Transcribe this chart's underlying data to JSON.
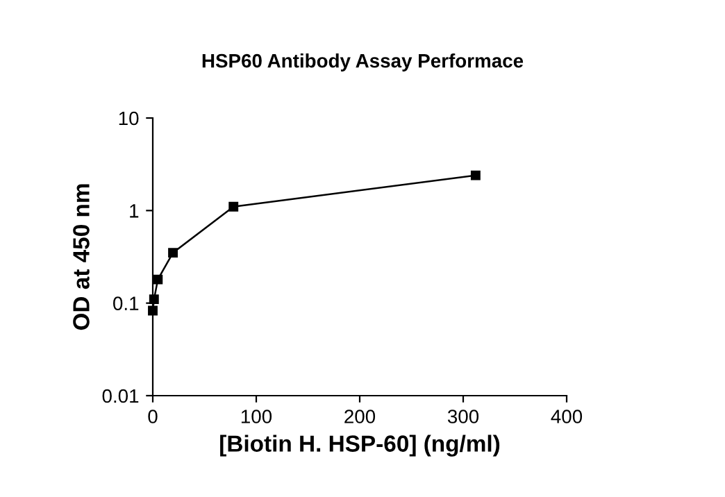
{
  "chart_data": {
    "type": "line",
    "title": "HSP60 Antibody Assay Performace",
    "xlabel": "[Biotin H. HSP-60] (ng/ml)",
    "ylabel": "OD at 450 nm",
    "x": [
      0,
      1.2,
      4.9,
      19.5,
      78,
      312
    ],
    "series": [
      {
        "color": "#000000",
        "values": [
          0.083,
          0.11,
          0.18,
          0.35,
          1.1,
          2.4
        ]
      }
    ],
    "log": "y",
    "xlim": [
      0,
      400
    ],
    "xticks": [
      0,
      100,
      200,
      300,
      400
    ],
    "ylim": [
      0.01,
      10
    ],
    "yticks": [
      0.01,
      0.1,
      1,
      10
    ],
    "marker": "square",
    "line_style": "solid",
    "grid": false,
    "legend": false
  }
}
